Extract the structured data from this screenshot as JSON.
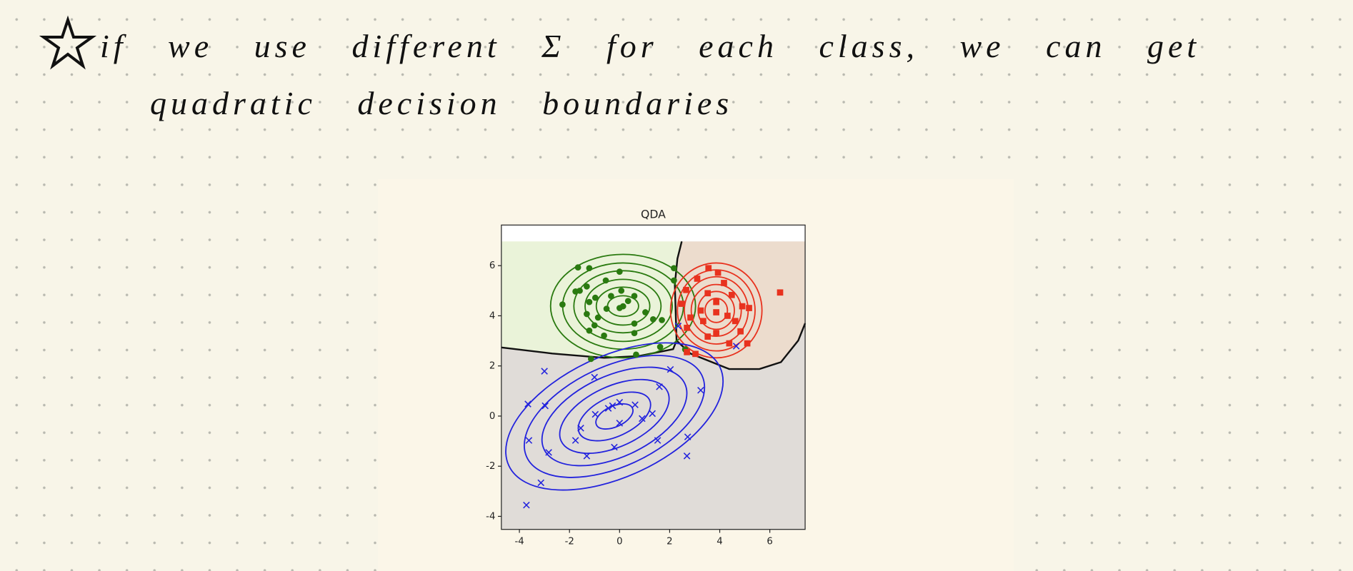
{
  "notes": {
    "line1": "if we use different Σ for each class, we can get",
    "line2": "quadratic decision boundaries"
  },
  "chart_data": {
    "type": "scatter",
    "title": "QDA",
    "xlim": [
      -4.72,
      7.41
    ],
    "ylim": [
      -4.52,
      7.62
    ],
    "xticks": [
      -4,
      -2,
      0,
      2,
      4,
      6
    ],
    "yticks": [
      -4,
      -2,
      0,
      2,
      4,
      6
    ],
    "series": [
      {
        "color": "#2a7a10",
        "marker": "circle",
        "x": [
          -1.66,
          -1.21,
          0,
          2.17,
          -0.55,
          -1.31,
          -1.76,
          -1.59,
          0.07,
          -0.34,
          0.59,
          -0.97,
          -2.28,
          -1.21,
          0.34,
          0.14,
          0,
          1.03,
          -0.52,
          -1.31,
          -0.86,
          1.34,
          1.69,
          -1.0,
          0.59,
          -1.21,
          -0.62,
          0.59,
          1.62,
          0.66,
          -1.14,
          2.17,
          2.62
        ],
        "y": [
          5.93,
          5.9,
          5.76,
          5.9,
          5.41,
          5.17,
          4.97,
          5.0,
          5.0,
          4.79,
          4.79,
          4.72,
          4.45,
          4.55,
          4.59,
          4.38,
          4.31,
          4.14,
          4.28,
          4.07,
          3.93,
          3.86,
          3.83,
          3.62,
          3.69,
          3.41,
          3.21,
          3.31,
          2.76,
          2.45,
          2.28,
          5.41,
          2.66
        ]
      },
      {
        "color": "#e8321e",
        "marker": "square",
        "x": [
          3.55,
          3.93,
          6.41,
          3.1,
          4.17,
          2.66,
          3.52,
          4.48,
          2.48,
          3.86,
          4.9,
          5.17,
          3.24,
          3.86,
          4.31,
          2.83,
          3.34,
          4.62,
          2.69,
          3.86,
          4.83,
          3.52,
          4.38,
          5.1,
          3.03,
          2.69
        ],
        "y": [
          5.9,
          5.72,
          4.93,
          5.48,
          5.31,
          5.03,
          4.9,
          4.83,
          4.48,
          4.55,
          4.38,
          4.31,
          4.21,
          4.14,
          4.0,
          3.93,
          3.79,
          3.79,
          3.52,
          3.31,
          3.38,
          3.17,
          2.9,
          2.9,
          2.48,
          2.55
        ]
      },
      {
        "color": "#2323dd",
        "marker": "x",
        "x": [
          -3.0,
          -3.66,
          -2.97,
          -1.0,
          2.03,
          1.59,
          3.24,
          0,
          -0.28,
          -0.45,
          0.62,
          -0.97,
          0.9,
          1.31,
          0,
          -1.55,
          -3.62,
          -1.76,
          2.72,
          -0.21,
          1.52,
          -2.83,
          -1.31,
          2.69,
          -3.14,
          -3.72,
          4.66,
          2.34
        ],
        "y": [
          1.79,
          0.48,
          0.41,
          1.55,
          1.86,
          1.17,
          1.03,
          0.55,
          0.41,
          0.31,
          0.45,
          0.07,
          -0.1,
          0.1,
          -0.28,
          -0.48,
          -0.97,
          -0.97,
          -0.83,
          -1.24,
          -0.97,
          -1.45,
          -1.59,
          -1.59,
          -2.66,
          -3.55,
          2.79,
          3.59
        ]
      }
    ]
  }
}
